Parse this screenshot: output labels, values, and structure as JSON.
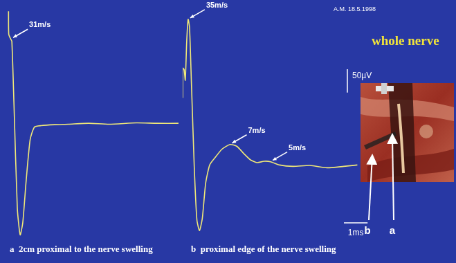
{
  "chart_data": [
    {
      "type": "line",
      "title": "a  2cm proximal to the nerve swelling",
      "x": [
        0,
        0.01,
        0.09,
        0.14,
        0.23,
        0.37,
        0.49,
        0.6,
        0.74,
        0.91,
        1.09,
        1.37,
        1.94,
        2.51,
        3.37,
        4.23,
        5.37,
        6.23,
        7.14
      ],
      "values": [
        248,
        198,
        188,
        183,
        45,
        -180,
        -237,
        -210,
        -120,
        -30,
        -3,
        0,
        2,
        3,
        5,
        3,
        6,
        5,
        5
      ],
      "color": "#f0e878",
      "xlim": [
        -0.3,
        7.2
      ],
      "ylim": [
        -250,
        265
      ],
      "tick_labels": false,
      "grid": false,
      "annotations": [
        {
          "text": "31m/s",
          "x": 0.11,
          "y": 188
        }
      ]
    },
    {
      "type": "line",
      "title": "b  proximal edge of the nerve swelling",
      "x": [
        0,
        0,
        0.06,
        0.11,
        0.17,
        0.23,
        0.29,
        0.37,
        0.49,
        0.6,
        0.71,
        0.83,
        0.97,
        1.14,
        1.37,
        1.66,
        2.0,
        2.29,
        2.57,
        2.86,
        3.14,
        3.43,
        3.71,
        4.09,
        4.66,
        5.37,
        6.09,
        6.8,
        7.37
      ],
      "values": [
        142,
        206,
        203,
        180,
        263,
        311,
        293,
        173,
        -8,
        -120,
        -143,
        -116,
        -41,
        -2,
        14,
        32,
        42,
        38,
        23,
        9,
        3,
        6,
        5,
        -2,
        -5,
        -3,
        -8,
        -5,
        -2
      ],
      "color": "#f0e878",
      "xlim": [
        0,
        8.0
      ],
      "ylim": [
        -165,
        345
      ],
      "tick_labels": false,
      "grid": false,
      "annotations": [
        {
          "text": "35m/s",
          "x": 0.23,
          "y": 311
        },
        {
          "text": "7m/s",
          "x": 2.0,
          "y": 42
        },
        {
          "text": "5m/s",
          "x": 3.71,
          "y": 5
        }
      ],
      "scale_bars": [
        {
          "value": 50,
          "label": "50µV",
          "axis": "y"
        },
        {
          "value": 1,
          "label": "1ms",
          "axis": "x"
        }
      ]
    }
  ],
  "date": "A.M. 18.5.1998",
  "caption": "whole nerve",
  "photo_labels": [
    "b",
    "a"
  ]
}
